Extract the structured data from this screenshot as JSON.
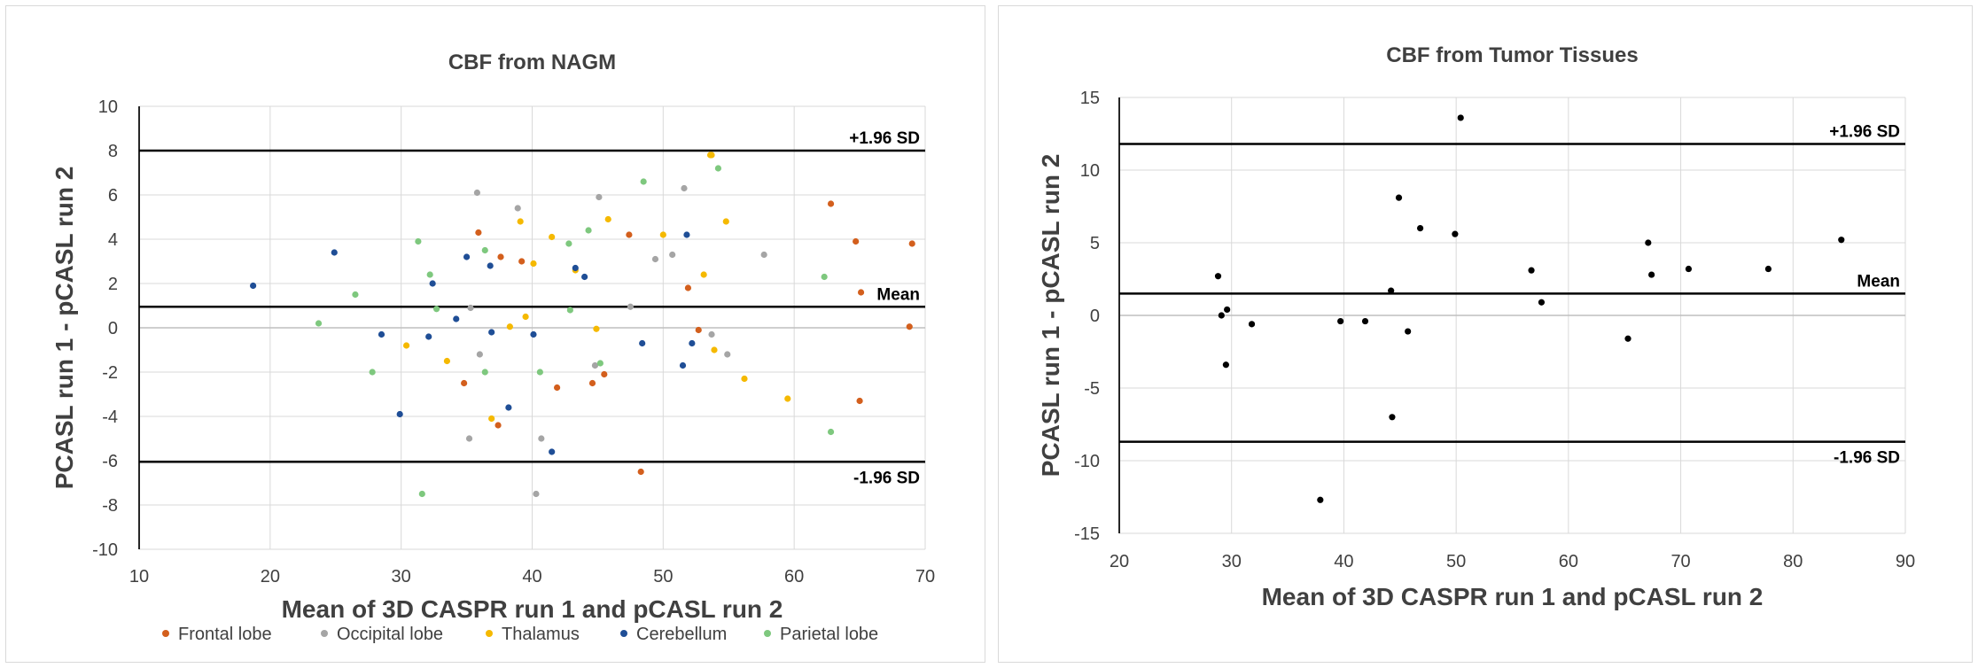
{
  "chart_data": [
    {
      "type": "scatter",
      "title": "CBF from NAGM",
      "xlabel": "Mean of 3D CASPR run 1 and pCASL run 2",
      "ylabel": "PCASL run 1 - pCASL run 2",
      "xlim": [
        10,
        70
      ],
      "ylim": [
        -10,
        10
      ],
      "xticks": [
        10,
        20,
        30,
        40,
        50,
        60,
        70
      ],
      "yticks": [
        -10,
        -8,
        -6,
        -4,
        -2,
        0,
        2,
        4,
        6,
        8,
        10
      ],
      "grid": true,
      "legend_position": "bottom",
      "reference_lines": [
        {
          "name": "upper",
          "label": "+1.96 SD",
          "y": 8.0
        },
        {
          "name": "mean",
          "label": "Mean",
          "y": 0.95
        },
        {
          "name": "lower",
          "label": "-1.96 SD",
          "y": -6.05
        }
      ],
      "series": [
        {
          "name": "Frontal lobe",
          "color": "#d35f1d",
          "x": [
            35.9,
            37.6,
            39.2,
            47.4,
            62.8,
            64.7,
            69.0,
            51.9,
            65.1,
            68.8,
            52.7,
            45.5,
            41.9,
            44.6,
            34.8,
            37.4,
            48.3,
            65.0
          ],
          "y": [
            4.3,
            3.2,
            3.0,
            4.2,
            5.6,
            3.9,
            3.8,
            1.8,
            1.6,
            0.05,
            -0.1,
            -2.1,
            -2.7,
            -2.5,
            -2.5,
            -4.4,
            -6.5,
            -3.3
          ]
        },
        {
          "name": "Occipital lobe",
          "color": "#a5a5a5",
          "x": [
            35.8,
            38.9,
            45.1,
            51.6,
            49.4,
            50.7,
            57.7,
            35.3,
            47.5,
            53.7,
            54.9,
            36.0,
            44.8,
            35.2,
            40.7,
            40.3
          ],
          "y": [
            6.1,
            5.4,
            5.9,
            6.3,
            3.1,
            3.3,
            3.3,
            0.9,
            0.95,
            -0.3,
            -1.2,
            -1.2,
            -1.7,
            -5.0,
            -5.0,
            -7.5
          ]
        },
        {
          "name": "Thalamus",
          "color": "#f5b900",
          "x": [
            39.1,
            41.5,
            43.3,
            45.8,
            50.0,
            54.8,
            53.7,
            40.1,
            53.1,
            39.5,
            38.3,
            44.9,
            30.4,
            53.9,
            56.2,
            59.5,
            33.5,
            36.9,
            53.6
          ],
          "y": [
            4.8,
            4.1,
            2.6,
            4.9,
            4.2,
            4.8,
            7.8,
            2.9,
            2.4,
            0.5,
            0.05,
            -0.05,
            -0.8,
            -1.0,
            -2.3,
            -3.2,
            -1.5,
            -4.1,
            7.8
          ]
        },
        {
          "name": "Cerebellum",
          "color": "#1f4e96",
          "x": [
            18.7,
            24.9,
            32.4,
            35.0,
            36.8,
            43.3,
            44.0,
            51.8,
            34.2,
            28.5,
            32.1,
            36.9,
            40.1,
            48.4,
            52.2,
            51.5,
            38.2,
            29.9,
            41.5
          ],
          "y": [
            1.9,
            3.4,
            2.0,
            3.2,
            2.8,
            2.7,
            2.3,
            4.2,
            0.4,
            -0.3,
            -0.4,
            -0.2,
            -0.3,
            -0.7,
            -0.7,
            -1.7,
            -3.6,
            -3.9,
            -5.6
          ]
        },
        {
          "name": "Parietal lobe",
          "color": "#7ec87e",
          "x": [
            31.3,
            32.2,
            36.4,
            42.8,
            44.3,
            48.5,
            54.2,
            62.3,
            26.5,
            23.7,
            32.7,
            42.9,
            27.8,
            36.4,
            40.6,
            45.2,
            62.8,
            31.6
          ],
          "y": [
            3.9,
            2.4,
            3.5,
            3.8,
            4.4,
            6.6,
            7.2,
            2.3,
            1.5,
            0.2,
            0.85,
            0.8,
            -2.0,
            -2.0,
            -2.0,
            -1.6,
            -4.7,
            -7.5
          ]
        }
      ]
    },
    {
      "type": "scatter",
      "title": "CBF from Tumor Tissues",
      "xlabel": "Mean of 3D CASPR run 1 and pCASL run 2",
      "ylabel": "PCASL run 1 - pCASL run 2",
      "xlim": [
        20,
        90
      ],
      "ylim": [
        -15,
        15
      ],
      "xticks": [
        20,
        30,
        40,
        50,
        60,
        70,
        80,
        90
      ],
      "yticks": [
        -15,
        -10,
        -5,
        0,
        5,
        10,
        15
      ],
      "grid": true,
      "reference_lines": [
        {
          "name": "upper",
          "label": "+1.96 SD",
          "y": 11.8
        },
        {
          "name": "mean",
          "label": "Mean",
          "y": 1.5
        },
        {
          "name": "lower",
          "label": "-1.96 SD",
          "y": -8.7
        }
      ],
      "series": [
        {
          "name": "Tumor",
          "color": "#000000",
          "x": [
            50.4,
            44.9,
            46.8,
            49.9,
            28.8,
            29.6,
            29.1,
            31.8,
            39.7,
            41.9,
            44.2,
            45.7,
            56.7,
            57.6,
            67.1,
            67.4,
            70.7,
            77.8,
            84.3,
            65.3,
            29.5,
            44.3,
            37.9
          ],
          "y": [
            13.6,
            8.1,
            6.0,
            5.6,
            2.7,
            0.4,
            0.0,
            -0.6,
            -0.4,
            -0.4,
            1.7,
            -1.1,
            3.1,
            0.9,
            5.0,
            2.8,
            3.2,
            3.2,
            5.2,
            -1.6,
            -3.4,
            -7.0,
            -12.7
          ]
        }
      ]
    }
  ]
}
